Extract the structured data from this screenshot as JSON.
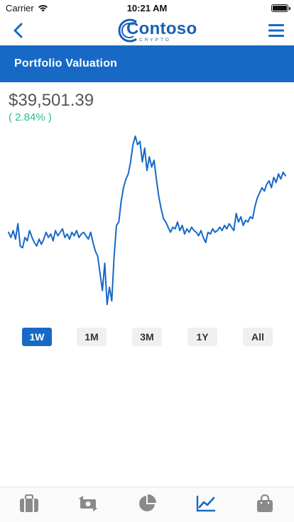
{
  "status_bar": {
    "carrier": "Carrier",
    "time": "10:21 AM",
    "battery_level": 1.0
  },
  "nav": {
    "back_icon": "chevron-left-icon",
    "menu_icon": "hamburger-menu-icon",
    "logo_text": "Contoso",
    "logo_sub": "CRYPTO"
  },
  "header": {
    "title": "Portfolio Valuation"
  },
  "portfolio": {
    "value": "$39,501.39",
    "change": "( 2.84% )"
  },
  "colors": {
    "primary": "#1769c5",
    "positive": "#2bbf8a",
    "icon_gray": "#8a8a8a"
  },
  "range_buttons": [
    {
      "label": "1W",
      "active": true
    },
    {
      "label": "1M",
      "active": false
    },
    {
      "label": "3M",
      "active": false
    },
    {
      "label": "1Y",
      "active": false
    },
    {
      "label": "All",
      "active": false
    }
  ],
  "tabs": [
    {
      "icon": "briefcase-icon",
      "active": false
    },
    {
      "icon": "exchange-icon",
      "active": false
    },
    {
      "icon": "pie-chart-icon",
      "active": false
    },
    {
      "icon": "line-chart-icon",
      "active": true
    },
    {
      "icon": "shopping-bag-icon",
      "active": false
    }
  ],
  "chart_data": {
    "type": "line",
    "title": "",
    "xlabel": "",
    "ylabel": "",
    "grid": false,
    "values": [
      0.44,
      0.41,
      0.45,
      0.4,
      0.49,
      0.36,
      0.35,
      0.41,
      0.39,
      0.45,
      0.41,
      0.38,
      0.36,
      0.4,
      0.37,
      0.4,
      0.44,
      0.41,
      0.43,
      0.39,
      0.45,
      0.42,
      0.44,
      0.46,
      0.41,
      0.43,
      0.4,
      0.44,
      0.42,
      0.45,
      0.41,
      0.43,
      0.44,
      0.42,
      0.4,
      0.44,
      0.38,
      0.33,
      0.3,
      0.2,
      0.1,
      0.26,
      0.02,
      0.12,
      0.04,
      0.3,
      0.48,
      0.5,
      0.62,
      0.7,
      0.75,
      0.78,
      0.85,
      0.95,
      1.0,
      0.95,
      0.97,
      0.85,
      0.93,
      0.8,
      0.88,
      0.82,
      0.86,
      0.75,
      0.65,
      0.58,
      0.52,
      0.5,
      0.47,
      0.44,
      0.47,
      0.46,
      0.5,
      0.45,
      0.48,
      0.43,
      0.46,
      0.44,
      0.47,
      0.45,
      0.44,
      0.42,
      0.45,
      0.41,
      0.38,
      0.44,
      0.43,
      0.46,
      0.44,
      0.45,
      0.47,
      0.45,
      0.48,
      0.46,
      0.49,
      0.47,
      0.45,
      0.55,
      0.5,
      0.53,
      0.48,
      0.51,
      0.5,
      0.53,
      0.52,
      0.59,
      0.64,
      0.67,
      0.7,
      0.68,
      0.72,
      0.74,
      0.7,
      0.76,
      0.73,
      0.78,
      0.75,
      0.79,
      0.77
    ]
  }
}
